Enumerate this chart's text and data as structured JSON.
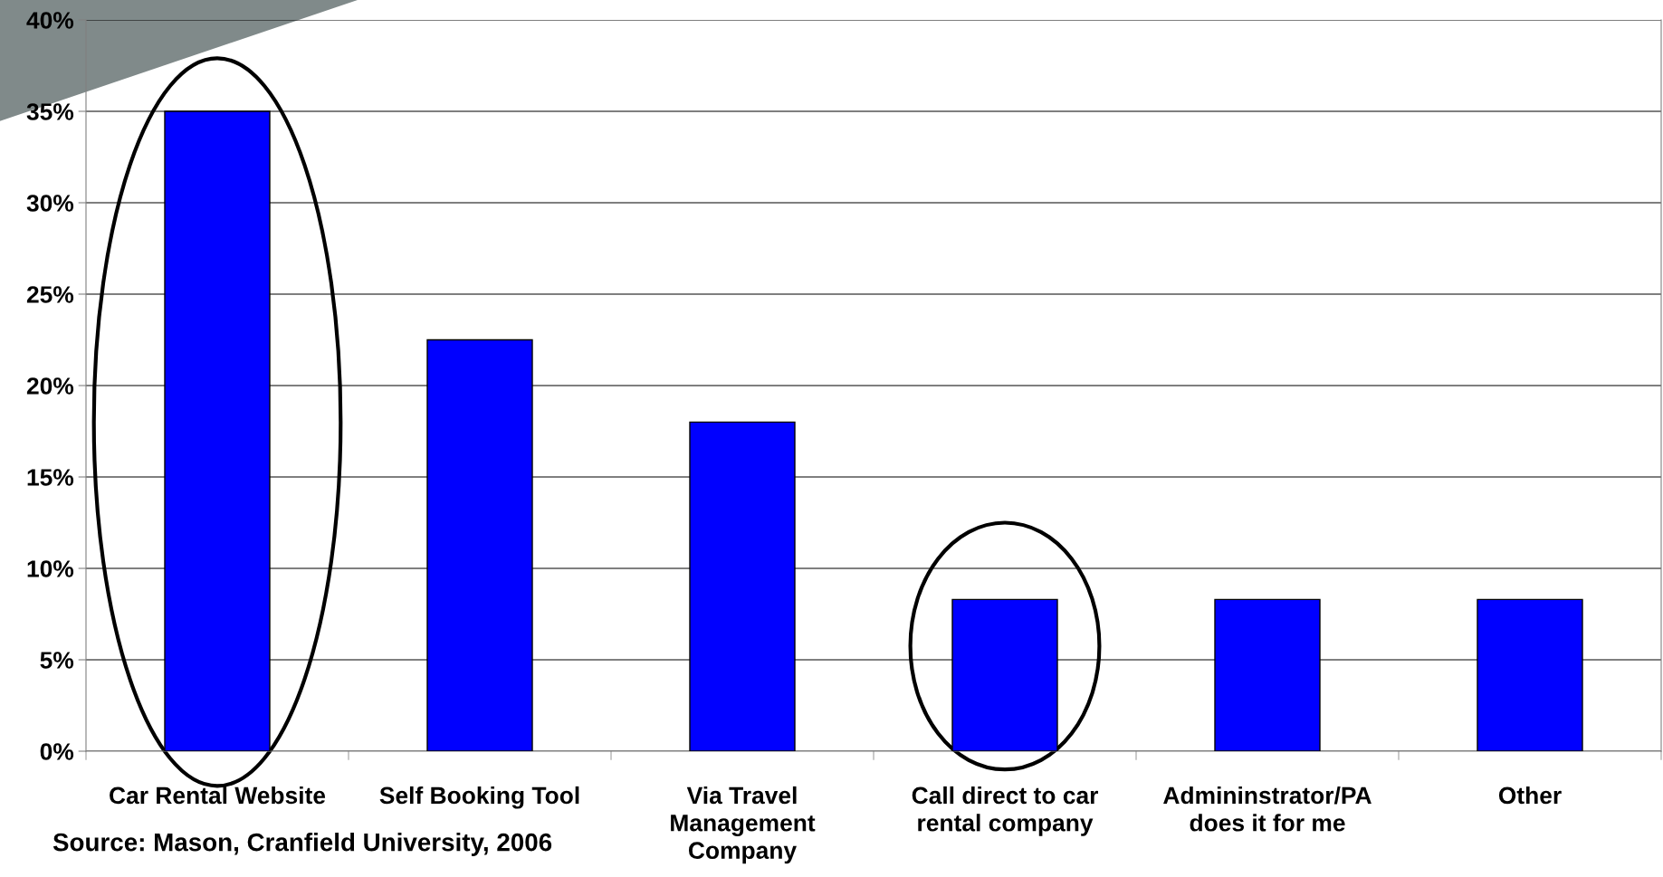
{
  "chart_data": {
    "type": "bar",
    "categories": [
      "Car Rental Website",
      "Self Booking Tool",
      "Via Travel\nManagement\nCompany",
      "Call direct to car\nrental company",
      "Admininstrator/PA\ndoes it for me",
      "Other"
    ],
    "values": [
      35,
      22.5,
      18,
      8.3,
      8.3,
      8.3
    ],
    "color": "#0000ff",
    "ylim": [
      0,
      40
    ],
    "yticks": [
      {
        "value": 0,
        "label": "0%"
      },
      {
        "value": 5,
        "label": "5%"
      },
      {
        "value": 10,
        "label": "10%"
      },
      {
        "value": 15,
        "label": "15%"
      },
      {
        "value": 20,
        "label": "20%"
      },
      {
        "value": 25,
        "label": "25%"
      },
      {
        "value": 30,
        "label": "30%"
      },
      {
        "value": 35,
        "label": "35%"
      },
      {
        "value": 40,
        "label": "40%"
      }
    ],
    "grid": "y",
    "legend": false,
    "annotations": [
      "Source: Mason, Cranfield University, 2006"
    ]
  }
}
